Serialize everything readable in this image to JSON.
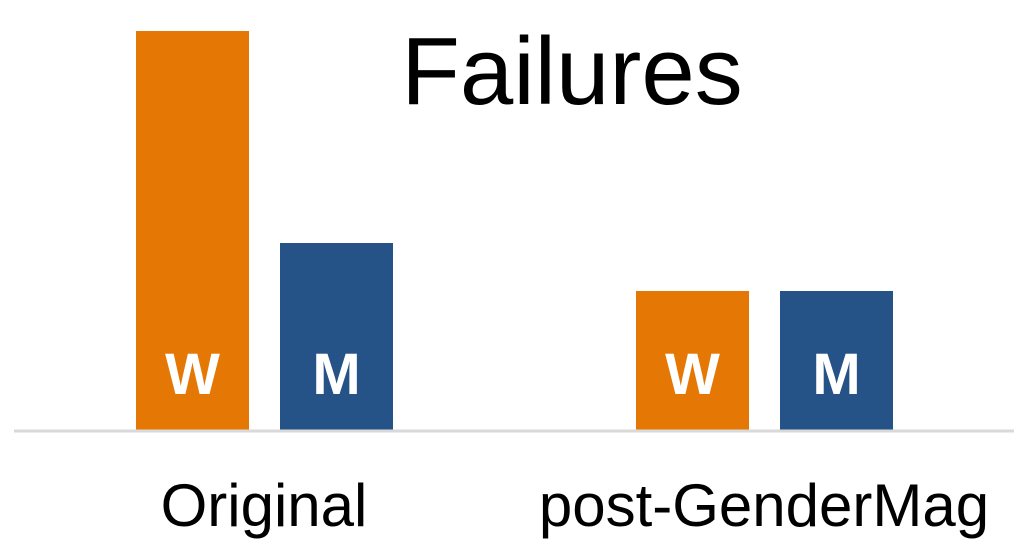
{
  "chart_data": {
    "type": "bar",
    "title": "Failures",
    "categories": [
      "Original",
      "post-GenderMag"
    ],
    "series": [
      {
        "name": "W",
        "color": "#E57805",
        "values": [
          100,
          35
        ]
      },
      {
        "name": "M",
        "color": "#255388",
        "values": [
          47,
          35
        ]
      }
    ],
    "xlabel": "",
    "ylabel": "",
    "ylim": [
      0,
      100
    ],
    "grid": false,
    "legend": "none",
    "baseline_color": "#D9D9D9"
  }
}
